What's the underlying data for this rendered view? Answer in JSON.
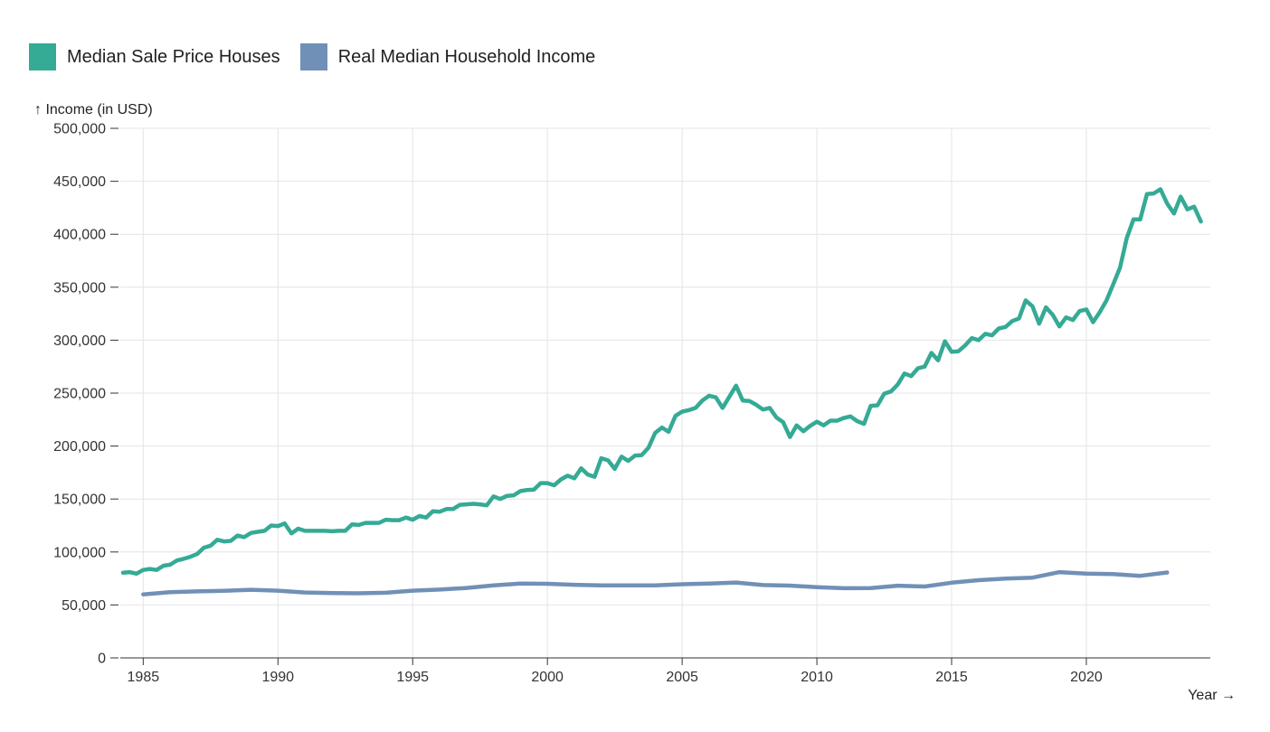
{
  "chart_data": {
    "type": "line",
    "legend_position": "top-left",
    "grid": true,
    "ylabel": "↑ Income (in USD)",
    "xlabel": "Year →",
    "xlim": [
      1984.15,
      2024.6
    ],
    "ylim": [
      0,
      500000
    ],
    "x_ticks": [
      1985,
      1990,
      1995,
      2000,
      2005,
      2010,
      2015,
      2020
    ],
    "y_ticks": [
      0,
      50000,
      100000,
      150000,
      200000,
      250000,
      300000,
      350000,
      400000,
      450000,
      500000
    ],
    "y_tick_labels": [
      "0",
      "50,000",
      "100,000",
      "150,000",
      "200,000",
      "250,000",
      "300,000",
      "350,000",
      "400,000",
      "450,000",
      "500,000"
    ],
    "series": [
      {
        "name": "Median Sale Price Houses",
        "color": "#35aa95",
        "x": [
          1984.25,
          1984.5,
          1984.75,
          1985.0,
          1985.25,
          1985.5,
          1985.75,
          1986.0,
          1986.25,
          1986.5,
          1986.75,
          1987.0,
          1987.25,
          1987.5,
          1987.75,
          1988.0,
          1988.25,
          1988.5,
          1988.75,
          1989.0,
          1989.25,
          1989.5,
          1989.75,
          1990.0,
          1990.25,
          1990.5,
          1990.75,
          1991.0,
          1991.25,
          1991.5,
          1991.75,
          1992.0,
          1992.25,
          1992.5,
          1992.75,
          1993.0,
          1993.25,
          1993.5,
          1993.75,
          1994.0,
          1994.25,
          1994.5,
          1994.75,
          1995.0,
          1995.25,
          1995.5,
          1995.75,
          1996.0,
          1996.25,
          1996.5,
          1996.75,
          1997.0,
          1997.25,
          1997.5,
          1997.75,
          1998.0,
          1998.25,
          1998.5,
          1998.75,
          1999.0,
          1999.25,
          1999.5,
          1999.75,
          2000.0,
          2000.25,
          2000.5,
          2000.75,
          2001.0,
          2001.25,
          2001.5,
          2001.75,
          2002.0,
          2002.25,
          2002.5,
          2002.75,
          2003.0,
          2003.25,
          2003.5,
          2003.75,
          2004.0,
          2004.25,
          2004.5,
          2004.75,
          2005.0,
          2005.25,
          2005.5,
          2005.75,
          2006.0,
          2006.25,
          2006.5,
          2006.75,
          2007.0,
          2007.25,
          2007.5,
          2007.75,
          2008.0,
          2008.25,
          2008.5,
          2008.75,
          2009.0,
          2009.25,
          2009.5,
          2009.75,
          2010.0,
          2010.25,
          2010.5,
          2010.75,
          2011.0,
          2011.25,
          2011.5,
          2011.75,
          2012.0,
          2012.25,
          2012.5,
          2012.75,
          2013.0,
          2013.25,
          2013.5,
          2013.75,
          2014.0,
          2014.25,
          2014.5,
          2014.75,
          2015.0,
          2015.25,
          2015.5,
          2015.75,
          2016.0,
          2016.25,
          2016.5,
          2016.75,
          2017.0,
          2017.25,
          2017.5,
          2017.75,
          2018.0,
          2018.25,
          2018.5,
          2018.75,
          2019.0,
          2019.25,
          2019.5,
          2019.75,
          2020.0,
          2020.25,
          2020.5,
          2020.75,
          2021.0,
          2021.25,
          2021.5,
          2021.75,
          2022.0,
          2022.25,
          2022.5,
          2022.75,
          2023.0,
          2023.25,
          2023.5,
          2023.75,
          2024.0,
          2024.25
        ],
        "values": [
          80500,
          81000,
          79500,
          83000,
          84000,
          83000,
          87000,
          88000,
          92000,
          93500,
          95500,
          98000,
          104000,
          106000,
          111500,
          110000,
          110500,
          115500,
          114000,
          118000,
          119000,
          120000,
          125000,
          124500,
          127000,
          117500,
          122000,
          120000,
          120000,
          120000,
          120000,
          119500,
          120000,
          120000,
          126000,
          125500,
          127500,
          127500,
          127500,
          130500,
          130000,
          130000,
          132500,
          130500,
          134000,
          132500,
          138500,
          138000,
          140500,
          140500,
          144500,
          145000,
          145500,
          145000,
          144000,
          152500,
          150000,
          153000,
          153500,
          157500,
          158500,
          159000,
          165000,
          165000,
          163000,
          168500,
          172000,
          169500,
          179000,
          173000,
          171000,
          188500,
          186500,
          178500,
          190000,
          186000,
          191000,
          191500,
          198500,
          212500,
          217500,
          213500,
          228500,
          232500,
          234000,
          236000,
          243000,
          247500,
          246000,
          236000,
          246500,
          257000,
          243000,
          242500,
          239000,
          234500,
          236000,
          227000,
          222500,
          208500,
          219500,
          214000,
          219000,
          223000,
          219500,
          224000,
          224000,
          226500,
          228000,
          223500,
          221000,
          238000,
          238500,
          249500,
          251500,
          258000,
          268500,
          266000,
          273500,
          275000,
          288000,
          281000,
          299000,
          289000,
          289500,
          295000,
          302000,
          300000,
          306000,
          304500,
          311000,
          312500,
          318000,
          320500,
          337500,
          332000,
          315500,
          331000,
          324000,
          313000,
          321500,
          319000,
          327500,
          329000,
          317000,
          326500,
          337500,
          353000,
          368500,
          396500,
          414000,
          414000,
          438000,
          438500,
          442500,
          429000,
          419500,
          435500,
          423500,
          426000,
          412000
        ]
      },
      {
        "name": "Real Median Household Income",
        "color": "#7190b7",
        "x": [
          1985,
          1986,
          1987,
          1988,
          1989,
          1990,
          1991,
          1992,
          1993,
          1994,
          1995,
          1996,
          1997,
          1998,
          1999,
          2000,
          2001,
          2002,
          2003,
          2004,
          2005,
          2006,
          2007,
          2008,
          2009,
          2010,
          2011,
          2012,
          2013,
          2014,
          2015,
          2016,
          2017,
          2018,
          2019,
          2020,
          2021,
          2022,
          2023
        ],
        "values": [
          60000,
          62000,
          62800,
          63300,
          64300,
          63500,
          61800,
          61300,
          61000,
          61500,
          63500,
          64500,
          66000,
          68500,
          70200,
          70000,
          69000,
          68500,
          68500,
          68500,
          69500,
          70200,
          71200,
          68800,
          68300,
          66800,
          65800,
          65900,
          68200,
          67400,
          71000,
          73400,
          74800,
          75800,
          81000,
          79600,
          79200,
          77500,
          80600
        ]
      }
    ]
  }
}
